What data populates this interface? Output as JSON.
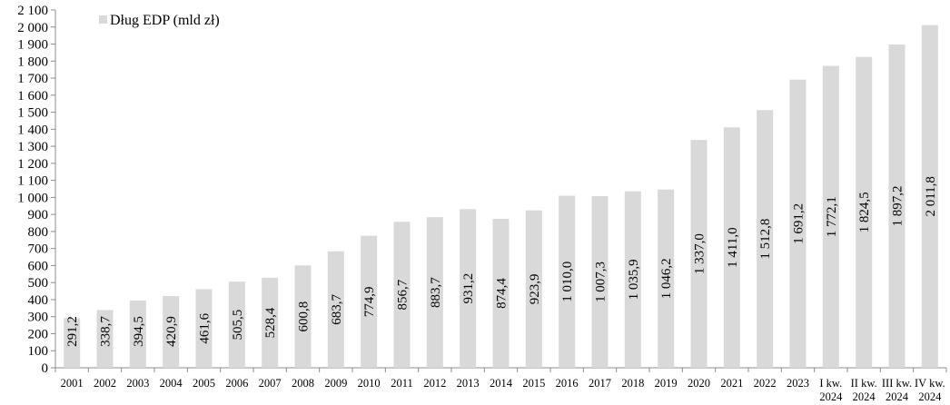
{
  "chart_data": {
    "type": "bar",
    "series": [
      {
        "name": "Dług EDP (mld zł)",
        "color": "#d9d9d9",
        "values": [
          291.2,
          338.7,
          394.5,
          420.9,
          461.6,
          505.5,
          528.4,
          600.8,
          683.7,
          774.9,
          856.7,
          883.7,
          931.2,
          874.4,
          923.9,
          1010.0,
          1007.3,
          1035.9,
          1046.2,
          1337.0,
          1411.0,
          1512.8,
          1691.2,
          1772.1,
          1824.5,
          1897.2,
          2011.8
        ],
        "labels": [
          "291,2",
          "338,7",
          "394,5",
          "420,9",
          "461,6",
          "505,5",
          "528,4",
          "600,8",
          "683,7",
          "774,9",
          "856,7",
          "883,7",
          "931,2",
          "874,4",
          "923,9",
          "1 010,0",
          "1 007,3",
          "1 035,9",
          "1 046,2",
          "1 337,0",
          "1 411,0",
          "1 512,8",
          "1 691,2",
          "1 772,1",
          "1 824,5",
          "1 897,2",
          "2 011,8"
        ]
      }
    ],
    "categories": [
      [
        "2001"
      ],
      [
        "2002"
      ],
      [
        "2003"
      ],
      [
        "2004"
      ],
      [
        "2005"
      ],
      [
        "2006"
      ],
      [
        "2007"
      ],
      [
        "2008"
      ],
      [
        "2009"
      ],
      [
        "2010"
      ],
      [
        "2011"
      ],
      [
        "2012"
      ],
      [
        "2013"
      ],
      [
        "2014"
      ],
      [
        "2015"
      ],
      [
        "2016"
      ],
      [
        "2017"
      ],
      [
        "2018"
      ],
      [
        "2019"
      ],
      [
        "2020"
      ],
      [
        "2021"
      ],
      [
        "2022"
      ],
      [
        "2023"
      ],
      [
        "I kw.",
        "2024"
      ],
      [
        "II kw.",
        "2024"
      ],
      [
        "III kw.",
        "2024"
      ],
      [
        "IV kw.",
        "2024"
      ]
    ],
    "yticks": [
      0,
      100,
      200,
      300,
      400,
      500,
      600,
      700,
      800,
      900,
      1000,
      1100,
      1200,
      1300,
      1400,
      1500,
      1600,
      1700,
      1800,
      1900,
      2000,
      2100
    ],
    "ytick_labels": [
      "0",
      "100",
      "200",
      "300",
      "400",
      "500",
      "600",
      "700",
      "800",
      "900",
      "1 000",
      "1 100",
      "1 200",
      "1 300",
      "1 400",
      "1 500",
      "1 600",
      "1 700",
      "1 800",
      "1 900",
      "2 000",
      "2 100"
    ],
    "ylim": [
      0,
      2100
    ],
    "grid": false,
    "legend_position": "top-left",
    "title": "",
    "xlabel": "",
    "ylabel": ""
  }
}
